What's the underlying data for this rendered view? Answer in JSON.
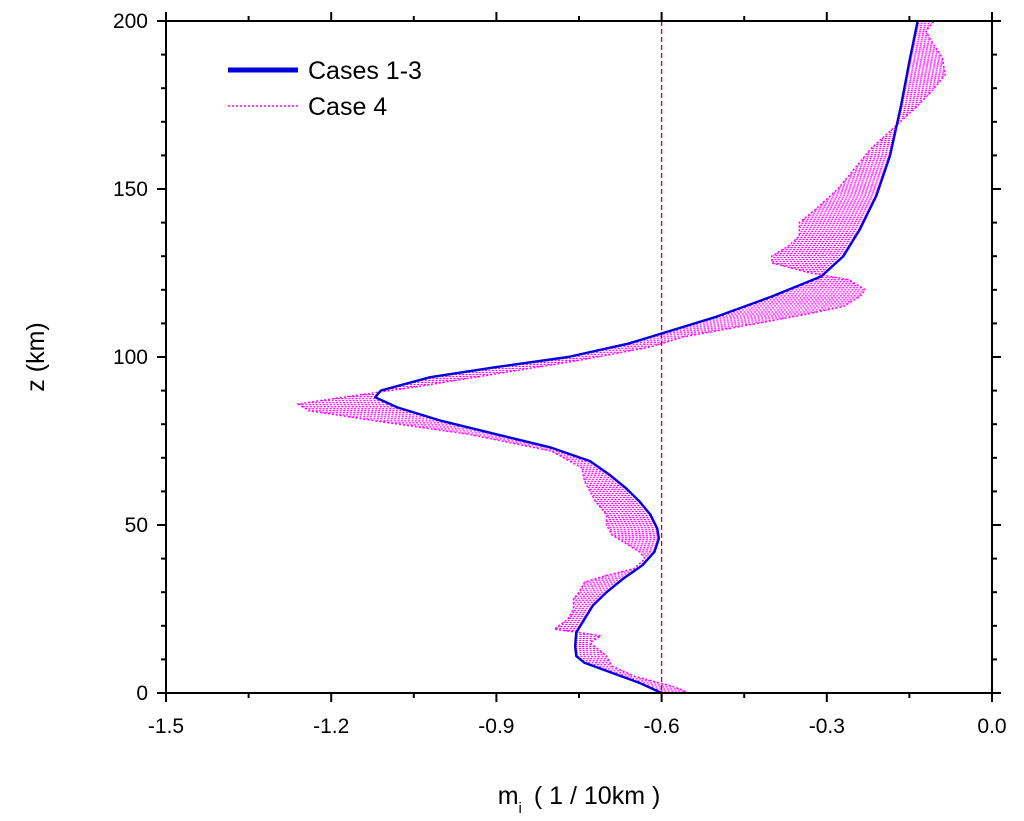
{
  "chart_data": {
    "type": "line",
    "xlabel": "m",
    "xlabel_subscript": "i",
    "xlabel_unit": "( 1 / 10km )",
    "ylabel": "z (km)",
    "xlim": [
      -1.5,
      0.0
    ],
    "ylim": [
      0,
      200
    ],
    "x_ticks": [
      -1.5,
      -1.2,
      -0.9,
      -0.6,
      -0.3,
      0.0
    ],
    "x_tick_labels": [
      "-1.5",
      "-1.2",
      "-0.9",
      "-0.6",
      "-0.3",
      "0.0"
    ],
    "y_ticks": [
      0,
      50,
      100,
      150,
      200
    ],
    "y_tick_labels": [
      "0",
      "50",
      "100",
      "150",
      "200"
    ],
    "legend": {
      "position": "top-left",
      "entries": [
        "Cases 1-3",
        "Case 4"
      ]
    },
    "reference_line": {
      "x": -0.6,
      "color": "#e00000",
      "style": "dashed"
    },
    "series": [
      {
        "name": "Cases 1-3",
        "color": "#0000dd",
        "style": "solid",
        "points": [
          [
            -0.6,
            0
          ],
          [
            -0.64,
            3
          ],
          [
            -0.69,
            6
          ],
          [
            -0.74,
            9
          ],
          [
            -0.755,
            11
          ],
          [
            -0.757,
            14
          ],
          [
            -0.755,
            18
          ],
          [
            -0.74,
            22
          ],
          [
            -0.725,
            26
          ],
          [
            -0.7,
            30
          ],
          [
            -0.67,
            34
          ],
          [
            -0.635,
            38
          ],
          [
            -0.613,
            42
          ],
          [
            -0.605,
            46
          ],
          [
            -0.608,
            49
          ],
          [
            -0.62,
            53
          ],
          [
            -0.64,
            57
          ],
          [
            -0.665,
            61
          ],
          [
            -0.695,
            65
          ],
          [
            -0.73,
            69
          ],
          [
            -0.8,
            73
          ],
          [
            -0.9,
            77
          ],
          [
            -1.0,
            81
          ],
          [
            -1.08,
            85
          ],
          [
            -1.12,
            88
          ],
          [
            -1.11,
            90
          ],
          [
            -1.02,
            94
          ],
          [
            -0.9,
            97
          ],
          [
            -0.77,
            100
          ],
          [
            -0.66,
            104
          ],
          [
            -0.6,
            107
          ],
          [
            -0.5,
            112
          ],
          [
            -0.4,
            118
          ],
          [
            -0.31,
            124
          ],
          [
            -0.27,
            130
          ],
          [
            -0.24,
            138
          ],
          [
            -0.21,
            148
          ],
          [
            -0.185,
            160
          ],
          [
            -0.165,
            175
          ],
          [
            -0.15,
            188
          ],
          [
            -0.135,
            200
          ]
        ]
      },
      {
        "name": "Case 4",
        "color": "#ff00ff",
        "style": "dotted",
        "points": [
          [
            -0.55,
            0
          ],
          [
            -0.58,
            2
          ],
          [
            -0.65,
            5
          ],
          [
            -0.69,
            8
          ],
          [
            -0.7,
            11
          ],
          [
            -0.715,
            13
          ],
          [
            -0.73,
            15
          ],
          [
            -0.72,
            16
          ],
          [
            -0.71,
            17
          ],
          [
            -0.75,
            18
          ],
          [
            -0.795,
            19
          ],
          [
            -0.77,
            22
          ],
          [
            -0.76,
            25
          ],
          [
            -0.76,
            28
          ],
          [
            -0.75,
            30
          ],
          [
            -0.74,
            33
          ],
          [
            -0.7,
            35
          ],
          [
            -0.65,
            37
          ],
          [
            -0.63,
            40
          ],
          [
            -0.64,
            42
          ],
          [
            -0.66,
            44
          ],
          [
            -0.69,
            47
          ],
          [
            -0.7,
            50
          ],
          [
            -0.7,
            53
          ],
          [
            -0.72,
            57
          ],
          [
            -0.73,
            60
          ],
          [
            -0.74,
            63
          ],
          [
            -0.745,
            67
          ],
          [
            -0.8,
            72
          ],
          [
            -0.95,
            77
          ],
          [
            -1.12,
            81
          ],
          [
            -1.24,
            84
          ],
          [
            -1.26,
            86
          ],
          [
            -1.18,
            88
          ],
          [
            -1.05,
            91
          ],
          [
            -0.9,
            95
          ],
          [
            -0.75,
            99
          ],
          [
            -0.62,
            103
          ],
          [
            -0.56,
            106
          ],
          [
            -0.46,
            109
          ],
          [
            -0.36,
            112
          ],
          [
            -0.27,
            115
          ],
          [
            -0.24,
            118
          ],
          [
            -0.23,
            120
          ],
          [
            -0.26,
            123
          ],
          [
            -0.33,
            125
          ],
          [
            -0.4,
            128
          ],
          [
            -0.4,
            130
          ],
          [
            -0.37,
            133
          ],
          [
            -0.35,
            136
          ],
          [
            -0.35,
            140
          ],
          [
            -0.32,
            144
          ],
          [
            -0.28,
            150
          ],
          [
            -0.25,
            156
          ],
          [
            -0.22,
            162
          ],
          [
            -0.18,
            168
          ],
          [
            -0.14,
            174
          ],
          [
            -0.11,
            179
          ],
          [
            -0.085,
            184
          ],
          [
            -0.09,
            189
          ],
          [
            -0.11,
            194
          ],
          [
            -0.12,
            197
          ],
          [
            -0.105,
            200
          ]
        ]
      }
    ]
  }
}
